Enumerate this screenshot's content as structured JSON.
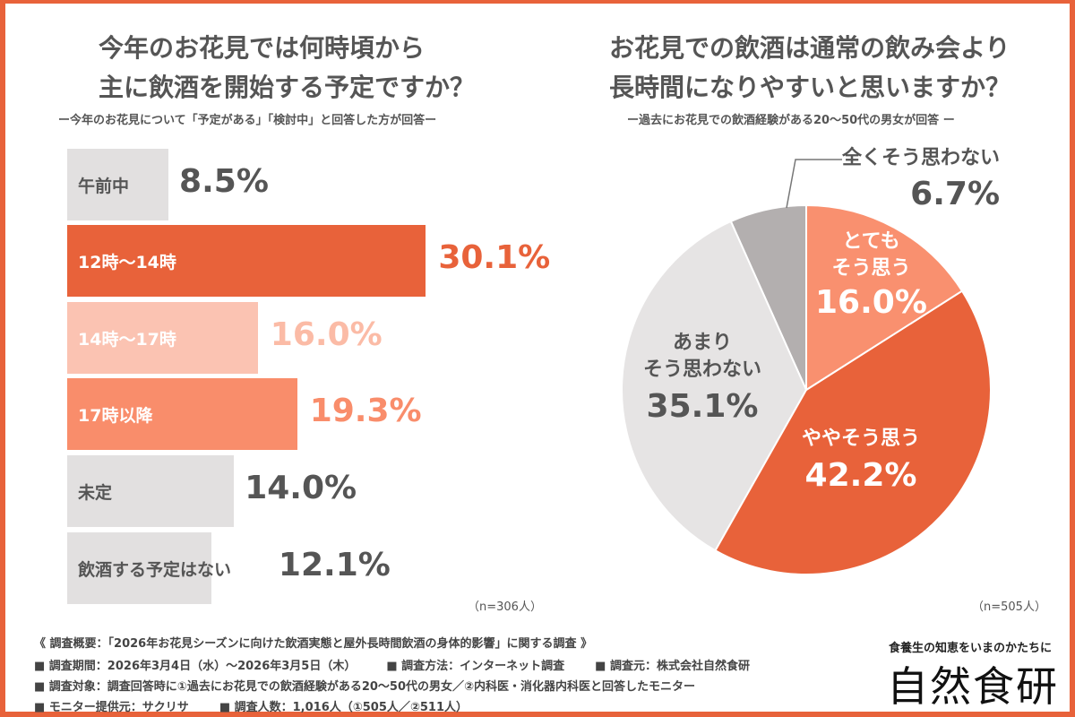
{
  "chart_data": [
    {
      "type": "bar",
      "orientation": "horizontal",
      "title": [
        "今年のお花見では何時頃から",
        "主に飲酒を開始する予定ですか？"
      ],
      "subtitle": "ー今年のお花見について「予定がある」「検討中」と回答した方が回答ー",
      "categories": [
        "午前中",
        "12時〜14時",
        "14時〜17時",
        "17時以降",
        "未定",
        "飲酒する予定はない"
      ],
      "values": [
        8.5,
        30.1,
        16.0,
        19.3,
        14.0,
        12.1
      ],
      "labels": [
        "8.5%",
        "30.1%",
        "16.0%",
        "19.3%",
        "14.0%",
        "12.1%"
      ],
      "colors": [
        "#E2E0E0",
        "#E8623A",
        "#FBC3B2",
        "#F98D6B",
        "#E2E0E0",
        "#E2E0E0"
      ],
      "label_colors": [
        "#555555",
        "#ffffff",
        "#ffffff",
        "#ffffff",
        "#555555",
        "#555555"
      ],
      "value_colors": [
        "#555555",
        "#E8623A",
        "#FBBBA6",
        "#F98D6B",
        "#555555",
        "#555555"
      ],
      "note": "（n=306人）"
    },
    {
      "type": "pie",
      "title": [
        "お花見での飲酒は通常の飲み会より",
        "長時間になりやすいと思いますか？"
      ],
      "subtitle": "ー過去にお花見での飲酒経験がある20〜50代の男女が回答 ー",
      "categories": [
        "とても そう思う",
        "ややそう思う",
        "あまり そう思わない",
        "全くそう思わない"
      ],
      "values": [
        16.0,
        42.2,
        35.1,
        6.7
      ],
      "labels": [
        "16.0%",
        "42.2%",
        "35.1%",
        "6.7%"
      ],
      "colors": [
        "#F9906F",
        "#E8623A",
        "#E6E4E4",
        "#B3AFAF"
      ],
      "note": "（n=505人）"
    }
  ],
  "pie_labels": {
    "l0a": "とても",
    "l0b": "そう思う",
    "l2a": "あまり",
    "l2b": "そう思わない",
    "l3": "全くそう思わない"
  },
  "footer": {
    "overview": "《 調査概要：「2026年お花見シーズンに向けた飲酒実態と屋外長時間飲酒の身体的影響」に関する調査 》",
    "period": "■ 調査期間：2026年3月4日（水）〜2026年3月5日（木）",
    "method": "■ 調査方法：インターネット調査",
    "source": "■ 調査元：株式会社自然食研",
    "target": "■ 調査対象：調査回答時に①過去にお花見での飲酒経験がある20〜50代の男女／②内科医・消化器内科医と回答したモニター",
    "provider": "■ モニター提供元：サクリサ",
    "count": "■ 調査人数：1,016人（①505人／②511人）"
  },
  "brand": {
    "tagline": "食養生の知恵をいまのかたちに",
    "name": "自然食研"
  }
}
